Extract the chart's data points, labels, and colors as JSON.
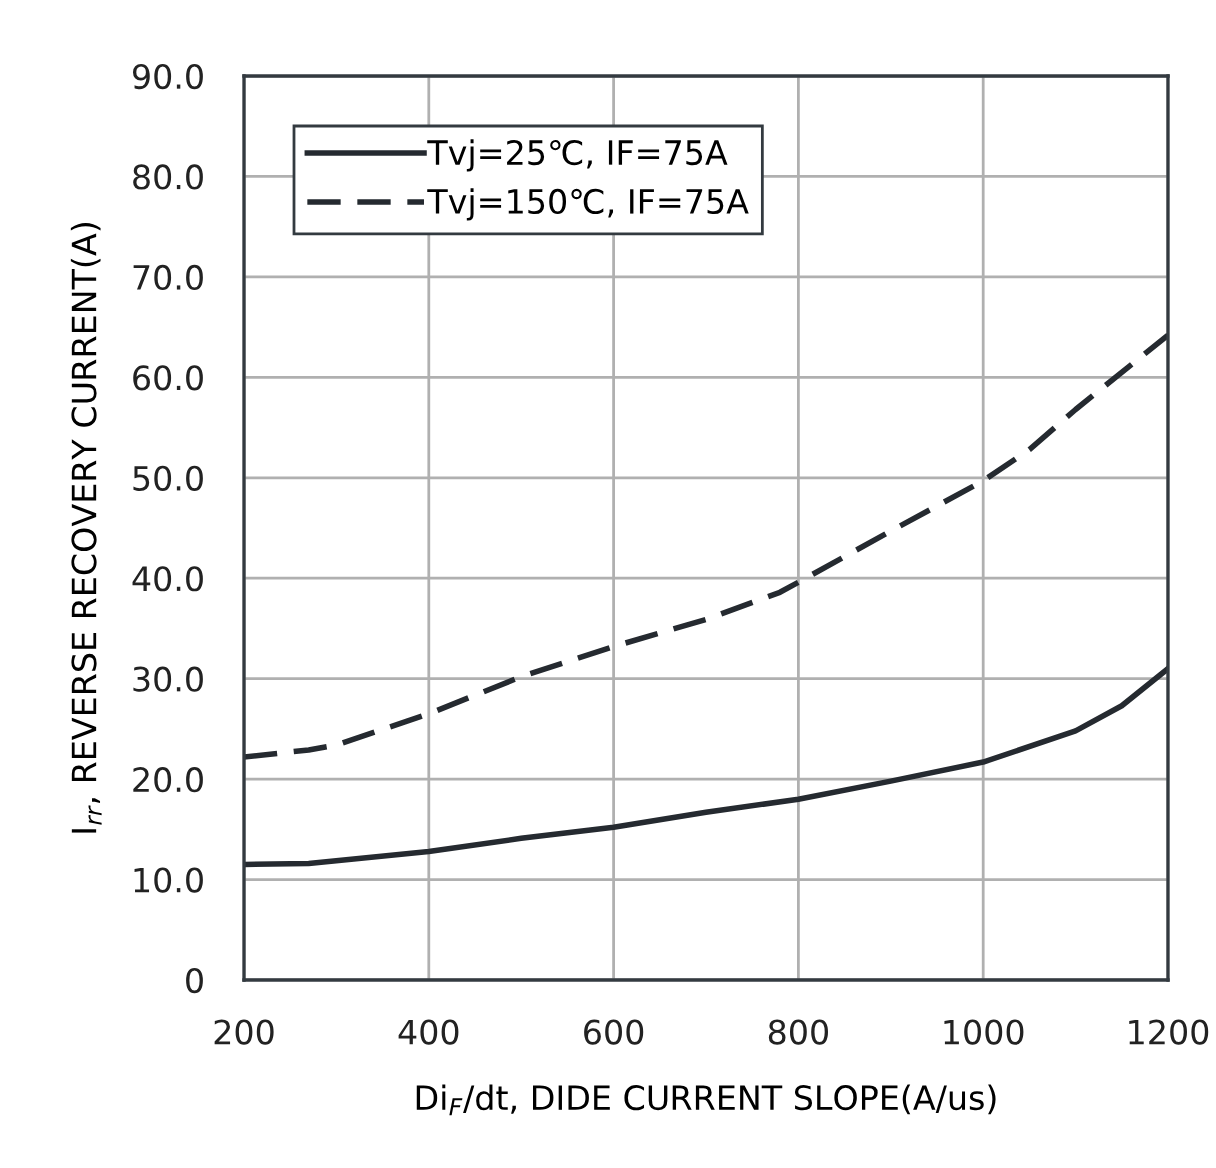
{
  "chart_data": {
    "type": "line",
    "xlabel": "Di$_{F}$/dt, DIDE CURRENT SLOPE(A/us)",
    "ylabel": "I$_{rr}$, REVERSE RECOVERY CURRENT(A)",
    "series": [
      {
        "name": "Tvj=25℃, IF=75A",
        "color": "#252a30",
        "line_style": "solid",
        "x": [
          200,
          270,
          400,
          500,
          600,
          700,
          800,
          900,
          1000,
          1100,
          1150,
          1200
        ],
        "values": [
          11.5,
          11.6,
          12.8,
          14.1,
          15.2,
          16.7,
          18.0,
          19.8,
          21.7,
          24.8,
          27.3,
          31.0
        ]
      },
      {
        "name": "Tvj=150℃, IF=75A",
        "color": "#252a30",
        "line_style": "dashed",
        "x": [
          200,
          270,
          300,
          400,
          500,
          600,
          700,
          780,
          800,
          900,
          1000,
          1050,
          1100,
          1200
        ],
        "values": [
          22.2,
          22.9,
          23.4,
          26.5,
          30.2,
          33.2,
          35.9,
          38.6,
          39.6,
          44.7,
          49.7,
          52.8,
          56.8,
          64.2
        ]
      }
    ],
    "xlim": [
      200,
      1200
    ],
    "xticks": [
      200,
      400,
      600,
      800,
      1000,
      1200
    ],
    "ylim": [
      0,
      90
    ],
    "yticks": [
      0,
      {
        "value": 10,
        "label": "10.0"
      },
      {
        "value": 20,
        "label": "20.0"
      },
      {
        "value": 30,
        "label": "30.0"
      },
      {
        "value": 40,
        "label": "40.0"
      },
      {
        "value": 50,
        "label": "50.0"
      },
      {
        "value": 60,
        "label": "60.0"
      },
      {
        "value": 70,
        "label": "70.0"
      },
      {
        "value": 80,
        "label": "80.0"
      },
      {
        "value": 90,
        "label": "90.0"
      }
    ],
    "grid": true,
    "legend": "top left",
    "marker": "none"
  }
}
